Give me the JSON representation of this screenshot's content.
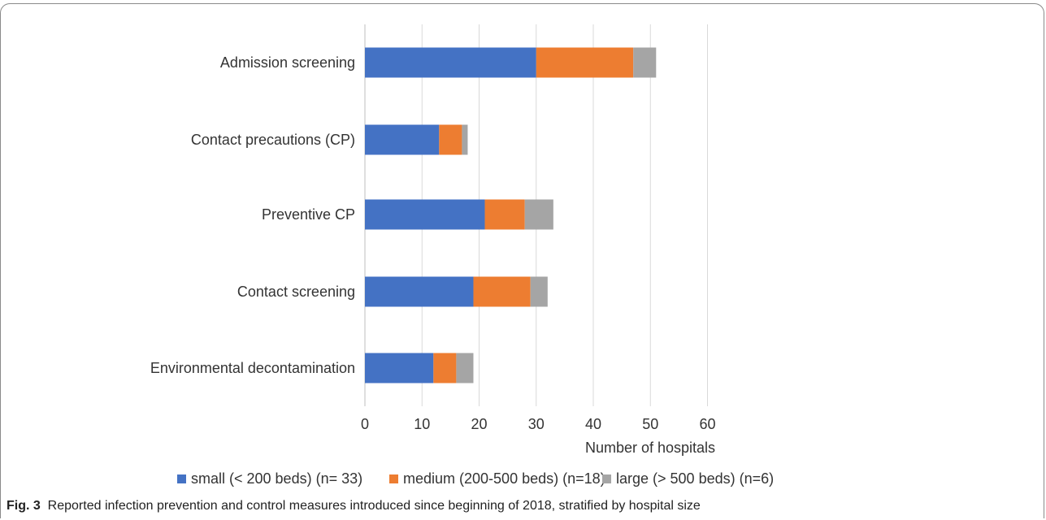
{
  "chart_data": {
    "type": "bar",
    "orientation": "horizontal",
    "stacked": true,
    "categories": [
      "Admission screening",
      "Contact precautions (CP)",
      "Preventive CP",
      "Contact screening",
      "Environmental decontamination"
    ],
    "series": [
      {
        "name": "small (< 200 beds) (n= 33)",
        "values": [
          30,
          13,
          21,
          19,
          12
        ],
        "color": "#4472c4"
      },
      {
        "name": "medium (200-500 beds) (n=18)",
        "values": [
          17,
          4,
          7,
          10,
          4
        ],
        "color": "#ed7d31"
      },
      {
        "name": "large (> 500 beds) (n=6)",
        "values": [
          4,
          1,
          5,
          3,
          3
        ],
        "color": "#a5a5a5"
      }
    ],
    "xlabel": "Number of hospitals",
    "xlim": [
      0,
      60
    ],
    "xticks": [
      0,
      10,
      20,
      30,
      40,
      50,
      60
    ],
    "grid": true,
    "legend_position": "bottom"
  },
  "caption": {
    "label": "Fig. 3",
    "text": "Reported infection prevention and control measures introduced since beginning of 2018, stratified by hospital size"
  }
}
